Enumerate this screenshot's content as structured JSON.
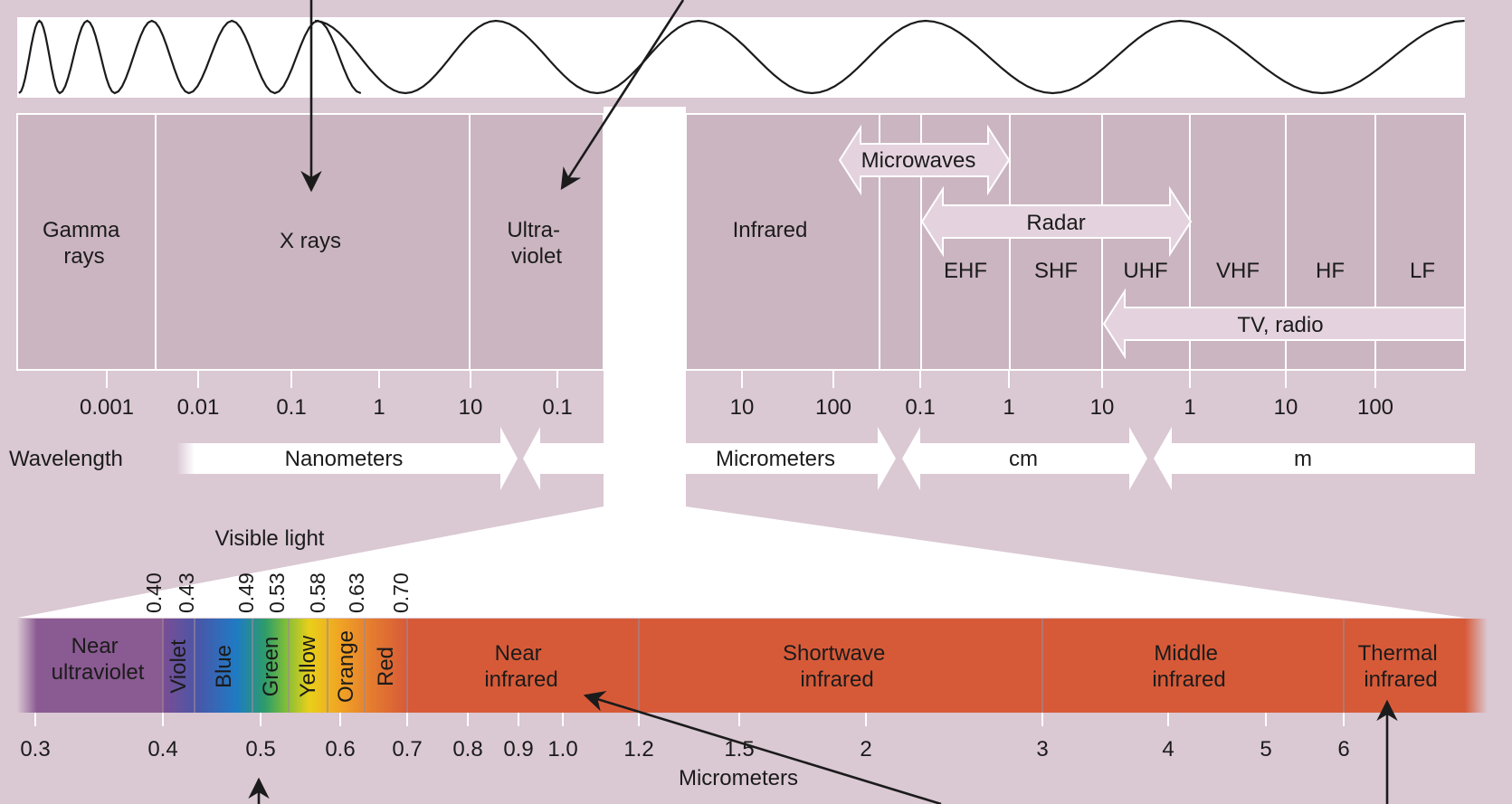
{
  "labels": {
    "wavelength": "Wavelength",
    "visible_light": "Visible light",
    "micrometers_bottom": "Micrometers"
  },
  "regions": [
    {
      "id": "gamma",
      "lines": [
        "Gamma",
        "rays"
      ]
    },
    {
      "id": "xray",
      "lines": [
        "X rays"
      ]
    },
    {
      "id": "uv",
      "lines": [
        "Ultra-",
        "violet"
      ]
    },
    {
      "id": "infrared",
      "lines": [
        "Infrared"
      ]
    }
  ],
  "bands": [
    "EHF",
    "SHF",
    "UHF",
    "VHF",
    "HF",
    "LF"
  ],
  "range_arrows": {
    "microwaves": "Microwaves",
    "radar": "Radar",
    "tv_radio": "TV, radio"
  },
  "top_ticks": [
    "0.001",
    "0.01",
    "0.1",
    "1",
    "10",
    "0.1",
    "10",
    "100",
    "0.1",
    "1",
    "10",
    "1",
    "10",
    "100"
  ],
  "unit_arrows": {
    "nanometers": "Nanometers",
    "micrometers": "Micrometers",
    "cm": "cm",
    "m": "m"
  },
  "visible_bounds": [
    "0.40",
    "0.43",
    "0.49",
    "0.53",
    "0.58",
    "0.63",
    "0.70"
  ],
  "bottom_segments": [
    {
      "id": "near-uv",
      "lines": [
        "Near",
        "ultraviolet"
      ]
    },
    {
      "id": "violet",
      "lines": [
        "Violet"
      ]
    },
    {
      "id": "blue",
      "lines": [
        "Blue"
      ]
    },
    {
      "id": "green",
      "lines": [
        "Green"
      ]
    },
    {
      "id": "yellow",
      "lines": [
        "Yellow"
      ]
    },
    {
      "id": "orange",
      "lines": [
        "Orange"
      ]
    },
    {
      "id": "red",
      "lines": [
        "Red"
      ]
    },
    {
      "id": "near-ir",
      "lines": [
        "Near",
        "infrared"
      ]
    },
    {
      "id": "swir",
      "lines": [
        "Shortwave",
        "infrared"
      ]
    },
    {
      "id": "mir",
      "lines": [
        "Middle",
        "infrared"
      ]
    },
    {
      "id": "tir",
      "lines": [
        "Thermal",
        "infrared"
      ]
    }
  ],
  "bottom_ticks": [
    "0.3",
    "0.4",
    "0.5",
    "0.6",
    "0.7",
    "0.8",
    "0.9",
    "1.0",
    "1.2",
    "1.5",
    "2",
    "3",
    "4",
    "5",
    "6"
  ],
  "colors": {
    "background": "#dac8d3",
    "panel": "#cbb5c1",
    "near_uv": "#8a5a92",
    "infrared_bar": "#d75a38",
    "ink": "#1b1b1b",
    "white": "#ffffff"
  }
}
